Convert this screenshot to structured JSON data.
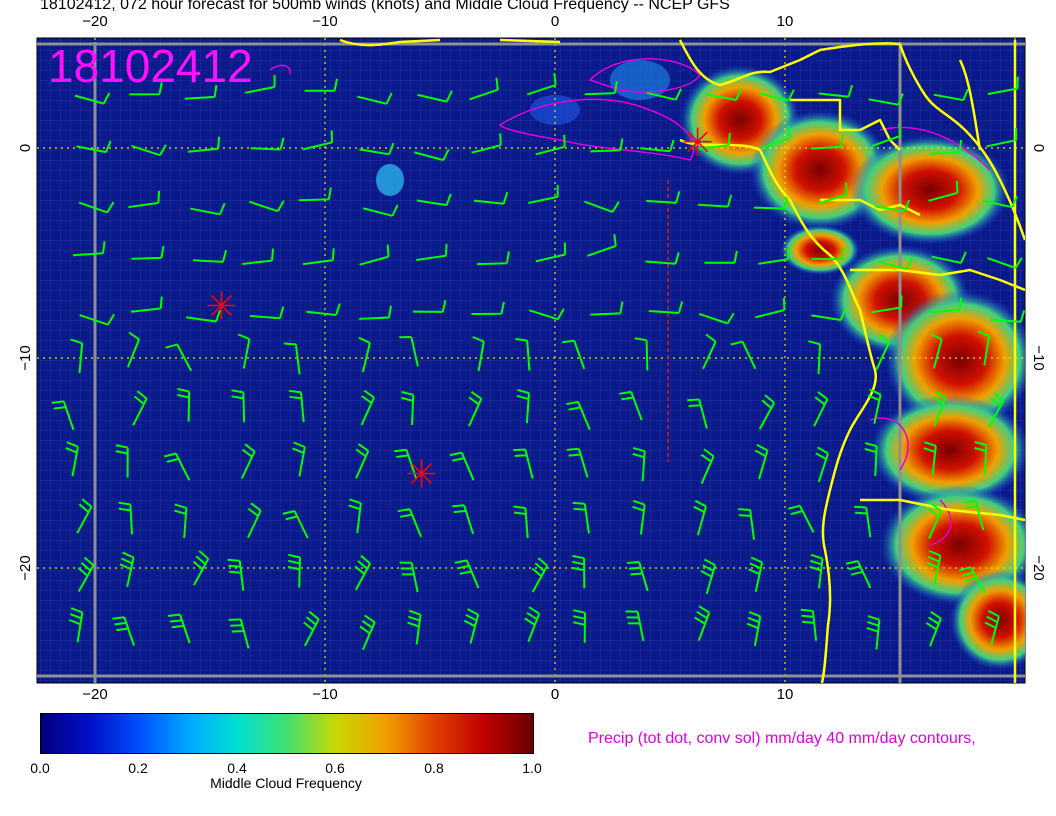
{
  "title": "18102412, 072 hour forecast for 500mb winds (knots) and Middle Cloud Frequency -- NCEP GFS",
  "stamp": "18102412",
  "map": {
    "lon_range": [
      -22.5,
      20
    ],
    "lat_range": [
      -25.5,
      5
    ],
    "lon_ticks": [
      "−20",
      "−10",
      "0",
      "10"
    ],
    "lat_ticks_left": [
      "0",
      "−10",
      "−20"
    ],
    "lat_ticks_right": [
      "0",
      "−10",
      "−20"
    ],
    "colors": {
      "ocean": "#0a1a8a",
      "coast": "#ffff00",
      "wind_barbs": "#00ff00",
      "precip_contours": "#e000e0",
      "gridlines": "#e8e800",
      "markers": "#ff0000"
    },
    "markers": [
      {
        "lon": -14.5,
        "lat": -7.5
      },
      {
        "lon": -5.8,
        "lat": -15.5
      },
      {
        "lon": 6.2,
        "lat": 0.3
      }
    ]
  },
  "colorbar": {
    "label": "Middle Cloud Frequency",
    "ticks": [
      "0.0",
      "0.2",
      "0.4",
      "0.6",
      "0.8",
      "1.0"
    ]
  },
  "precip_note": "Precip (tot dot, conv sol) mm/day 40 mm/day contours,"
}
